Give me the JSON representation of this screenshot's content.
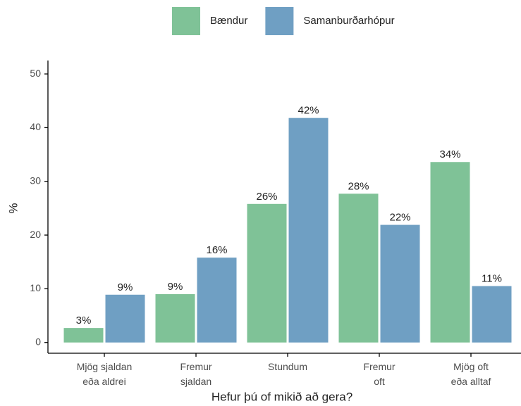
{
  "chart_data": {
    "type": "bar",
    "x_label": "Hefur þú of mikið að gera?",
    "y_label": "%",
    "categories": [
      [
        "Mjög sjaldan",
        "eða aldrei"
      ],
      [
        "Fremur",
        "sjaldan"
      ],
      [
        "Stundum"
      ],
      [
        "Fremur",
        "oft"
      ],
      [
        "Mjög oft",
        "eða alltaf"
      ]
    ],
    "series": [
      {
        "name": "Bændur",
        "color": "#7fc297",
        "values": [
          2.7,
          9.0,
          25.8,
          27.7,
          33.6
        ],
        "value_labels": [
          "3%",
          "9%",
          "26%",
          "28%",
          "34%"
        ]
      },
      {
        "name": "Samanburðarhópur",
        "color": "#6f9fc3",
        "values": [
          8.9,
          15.8,
          41.8,
          21.9,
          10.5
        ],
        "value_labels": [
          "9%",
          "16%",
          "42%",
          "22%",
          "11%"
        ]
      }
    ],
    "ylim": [
      -2,
      52.5
    ],
    "yticks": [
      0,
      10,
      20,
      30,
      40,
      50
    ],
    "grid": false,
    "legend": "top"
  }
}
